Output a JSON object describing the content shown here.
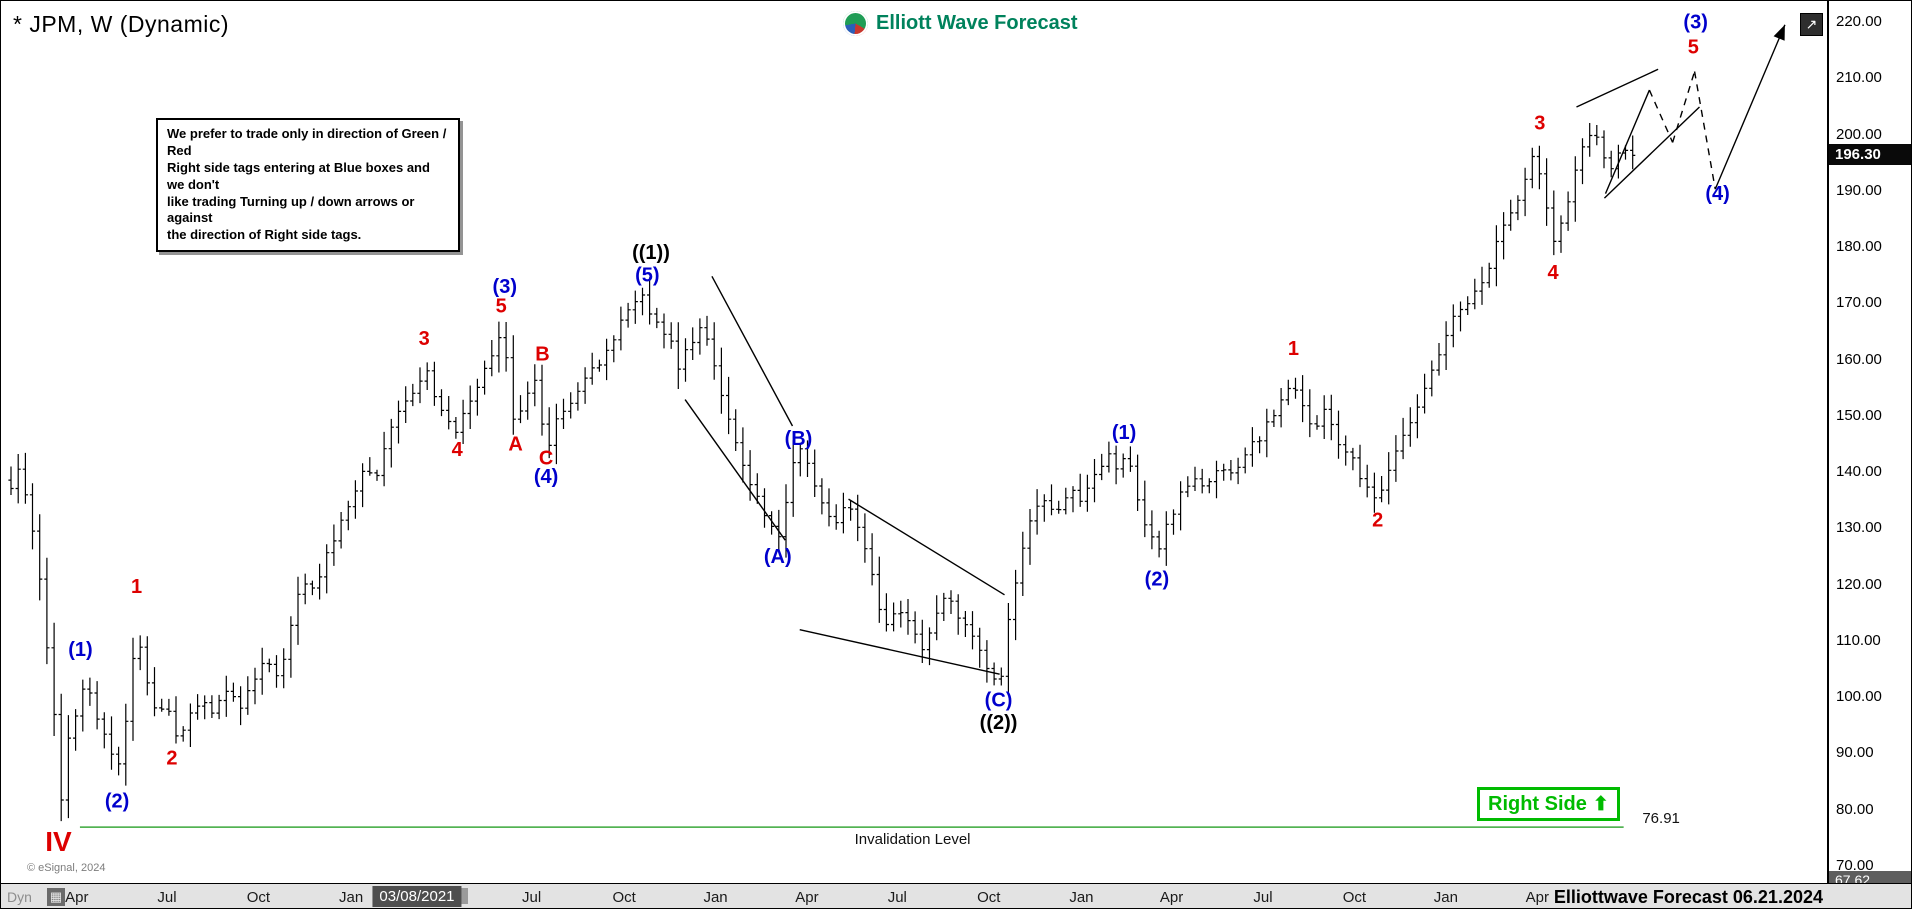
{
  "header": {
    "symbol_title": "* JPM, W (Dynamic)",
    "brand": "Elliott Wave Forecast"
  },
  "annotations": {
    "note_lines": [
      "We prefer to trade only in direction of Green / Red",
      "Right side tags entering at Blue boxes and we don't",
      "like trading Turning up / down arrows or against",
      "the direction of Right side tags."
    ],
    "right_side_label": "Right Side",
    "invalidation_label": "Invalidation Level",
    "invalidation_value": "76.91",
    "footer_text": "Elliottwave Forecast 06.21.2024",
    "copyright": "© eSignal, 2024",
    "mode_label": "Dyn"
  },
  "icons": {
    "up_arrow": "⬆",
    "scroll_arrow": "↗",
    "mode_icon": "▦"
  },
  "colors": {
    "red": "#dd0000",
    "blue": "#0000cc",
    "black": "#000000",
    "green_line": "#3aa83a",
    "badge_green": "#00bb00",
    "brand_green": "#00825c"
  },
  "price_axis": {
    "min": 70,
    "max": 220,
    "step": 10,
    "current_price": "196.30",
    "current_price_value": 196.3,
    "bottom_value": "67.62",
    "bottom_value_num": 67.62
  },
  "time_axis": {
    "ticks": [
      {
        "label": "Apr",
        "t": 0.0363
      },
      {
        "label": "Jul",
        "t": 0.086
      },
      {
        "label": "Oct",
        "t": 0.1364
      },
      {
        "label": "Jan",
        "t": 0.1875
      },
      {
        "label": "03/08/2021",
        "t": 0.2238,
        "highlight": true
      },
      {
        "label": "Jul",
        "t": 0.287
      },
      {
        "label": "Oct",
        "t": 0.338
      },
      {
        "label": "Jan",
        "t": 0.3884
      },
      {
        "label": "Apr",
        "t": 0.4388
      },
      {
        "label": "Jul",
        "t": 0.4886
      },
      {
        "label": "Oct",
        "t": 0.539
      },
      {
        "label": "Jan",
        "t": 0.5901
      },
      {
        "label": "Apr",
        "t": 0.6398
      },
      {
        "label": "Jul",
        "t": 0.6902
      },
      {
        "label": "Oct",
        "t": 0.7406
      },
      {
        "label": "Jan",
        "t": 0.791
      },
      {
        "label": "Apr",
        "t": 0.8414
      }
    ]
  },
  "chart_data": {
    "type": "ohlc",
    "symbol": "JPM",
    "timeframe": "weekly",
    "ylim": [
      70,
      220
    ],
    "current_price": 196.3,
    "bar_count": 227,
    "bars_end_t": 0.894,
    "price_path": [
      [
        0.0,
        137
      ],
      [
        0.004,
        140
      ],
      [
        0.009,
        136
      ],
      [
        0.015,
        124
      ],
      [
        0.02,
        108
      ],
      [
        0.024,
        96
      ],
      [
        0.028,
        80
      ],
      [
        0.032,
        93
      ],
      [
        0.036,
        97
      ],
      [
        0.042,
        104
      ],
      [
        0.047,
        96
      ],
      [
        0.054,
        91
      ],
      [
        0.058,
        86
      ],
      [
        0.064,
        98
      ],
      [
        0.069,
        113
      ],
      [
        0.075,
        102
      ],
      [
        0.081,
        97
      ],
      [
        0.086,
        99
      ],
      [
        0.092,
        92
      ],
      [
        0.099,
        97
      ],
      [
        0.105,
        100
      ],
      [
        0.112,
        97
      ],
      [
        0.119,
        102
      ],
      [
        0.126,
        98
      ],
      [
        0.134,
        103
      ],
      [
        0.14,
        106
      ],
      [
        0.148,
        104
      ],
      [
        0.155,
        114
      ],
      [
        0.161,
        121
      ],
      [
        0.168,
        119
      ],
      [
        0.175,
        126
      ],
      [
        0.181,
        131
      ],
      [
        0.188,
        136
      ],
      [
        0.195,
        141
      ],
      [
        0.202,
        139
      ],
      [
        0.208,
        146
      ],
      [
        0.215,
        151
      ],
      [
        0.222,
        154
      ],
      [
        0.228,
        159
      ],
      [
        0.234,
        152
      ],
      [
        0.24,
        150
      ],
      [
        0.246,
        147
      ],
      [
        0.253,
        153
      ],
      [
        0.259,
        156
      ],
      [
        0.266,
        162
      ],
      [
        0.271,
        166
      ],
      [
        0.277,
        149
      ],
      [
        0.284,
        153
      ],
      [
        0.29,
        157
      ],
      [
        0.295,
        143
      ],
      [
        0.301,
        149
      ],
      [
        0.308,
        152
      ],
      [
        0.314,
        156
      ],
      [
        0.321,
        158
      ],
      [
        0.328,
        161
      ],
      [
        0.335,
        166
      ],
      [
        0.341,
        170
      ],
      [
        0.348,
        171
      ],
      [
        0.355,
        167
      ],
      [
        0.362,
        164
      ],
      [
        0.368,
        159
      ],
      [
        0.375,
        163
      ],
      [
        0.382,
        166
      ],
      [
        0.388,
        158
      ],
      [
        0.395,
        150
      ],
      [
        0.402,
        143
      ],
      [
        0.409,
        137
      ],
      [
        0.415,
        132
      ],
      [
        0.423,
        128
      ],
      [
        0.429,
        137
      ],
      [
        0.434,
        146
      ],
      [
        0.441,
        139
      ],
      [
        0.448,
        133
      ],
      [
        0.454,
        130
      ],
      [
        0.461,
        134
      ],
      [
        0.468,
        130
      ],
      [
        0.473,
        124
      ],
      [
        0.478,
        117
      ],
      [
        0.484,
        112
      ],
      [
        0.489,
        116
      ],
      [
        0.496,
        112
      ],
      [
        0.503,
        108
      ],
      [
        0.509,
        114
      ],
      [
        0.516,
        118
      ],
      [
        0.523,
        114
      ],
      [
        0.53,
        111
      ],
      [
        0.536,
        107
      ],
      [
        0.542,
        103
      ],
      [
        0.546,
        104
      ],
      [
        0.551,
        116
      ],
      [
        0.557,
        125
      ],
      [
        0.563,
        132
      ],
      [
        0.57,
        135
      ],
      [
        0.577,
        132
      ],
      [
        0.583,
        137
      ],
      [
        0.59,
        134
      ],
      [
        0.597,
        139
      ],
      [
        0.604,
        143
      ],
      [
        0.61,
        140
      ],
      [
        0.616,
        143
      ],
      [
        0.621,
        136
      ],
      [
        0.626,
        130
      ],
      [
        0.632,
        126
      ],
      [
        0.638,
        131
      ],
      [
        0.645,
        137
      ],
      [
        0.652,
        139
      ],
      [
        0.659,
        137
      ],
      [
        0.665,
        141
      ],
      [
        0.672,
        139
      ],
      [
        0.679,
        143
      ],
      [
        0.686,
        145
      ],
      [
        0.692,
        148
      ],
      [
        0.699,
        152
      ],
      [
        0.706,
        157
      ],
      [
        0.711,
        152
      ],
      [
        0.718,
        148
      ],
      [
        0.724,
        151
      ],
      [
        0.731,
        146
      ],
      [
        0.738,
        143
      ],
      [
        0.745,
        139
      ],
      [
        0.753,
        135
      ],
      [
        0.761,
        142
      ],
      [
        0.768,
        146
      ],
      [
        0.774,
        151
      ],
      [
        0.781,
        157
      ],
      [
        0.788,
        162
      ],
      [
        0.794,
        167
      ],
      [
        0.801,
        169
      ],
      [
        0.808,
        172
      ],
      [
        0.815,
        177
      ],
      [
        0.821,
        182
      ],
      [
        0.828,
        187
      ],
      [
        0.835,
        192
      ],
      [
        0.84,
        198
      ],
      [
        0.845,
        190
      ],
      [
        0.85,
        181
      ],
      [
        0.856,
        186
      ],
      [
        0.862,
        193
      ],
      [
        0.869,
        201
      ],
      [
        0.876,
        198
      ],
      [
        0.881,
        194
      ],
      [
        0.887,
        197
      ],
      [
        0.894,
        196.3
      ]
    ],
    "wave_labels": [
      {
        "text": "IV",
        "t": 0.0262,
        "price": 74.0,
        "color": "red",
        "size": 28
      },
      {
        "text": "1",
        "t": 0.0692,
        "price": 119.5,
        "color": "red"
      },
      {
        "text": "2",
        "t": 0.0887,
        "price": 89.0,
        "color": "red"
      },
      {
        "text": "3",
        "t": 0.2278,
        "price": 163.5,
        "color": "red"
      },
      {
        "text": "4",
        "t": 0.246,
        "price": 143.8,
        "color": "red"
      },
      {
        "text": "5",
        "t": 0.2702,
        "price": 169.3,
        "color": "red"
      },
      {
        "text": "A",
        "t": 0.2782,
        "price": 144.8,
        "color": "red"
      },
      {
        "text": "B",
        "t": 0.293,
        "price": 160.8,
        "color": "red"
      },
      {
        "text": "C",
        "t": 0.295,
        "price": 142.3,
        "color": "red"
      },
      {
        "text": "1",
        "t": 0.707,
        "price": 161.8,
        "color": "red"
      },
      {
        "text": "2",
        "t": 0.7534,
        "price": 131.3,
        "color": "red"
      },
      {
        "text": "3",
        "t": 0.8428,
        "price": 201.8,
        "color": "red"
      },
      {
        "text": "4",
        "t": 0.8501,
        "price": 175.3,
        "color": "red"
      },
      {
        "text": "5",
        "t": 0.9274,
        "price": 215.3,
        "color": "red"
      },
      {
        "text": "(1)",
        "t": 0.0383,
        "price": 108.3,
        "color": "blue"
      },
      {
        "text": "(2)",
        "t": 0.0585,
        "price": 81.3,
        "color": "blue"
      },
      {
        "text": "(3)",
        "t": 0.2722,
        "price": 172.8,
        "color": "blue"
      },
      {
        "text": "(4)",
        "t": 0.295,
        "price": 139.0,
        "color": "blue"
      },
      {
        "text": "(5)",
        "t": 0.3508,
        "price": 174.8,
        "color": "blue"
      },
      {
        "text": "(A)",
        "t": 0.4227,
        "price": 124.8,
        "color": "blue"
      },
      {
        "text": "(B)",
        "t": 0.4341,
        "price": 145.8,
        "color": "blue"
      },
      {
        "text": "(C)",
        "t": 0.5444,
        "price": 99.3,
        "color": "blue"
      },
      {
        "text": "(1)",
        "t": 0.6136,
        "price": 146.8,
        "color": "blue"
      },
      {
        "text": "(2)",
        "t": 0.6317,
        "price": 120.8,
        "color": "blue"
      },
      {
        "text": "(3)",
        "t": 0.9287,
        "price": 219.8,
        "color": "blue"
      },
      {
        "text": "(4)",
        "t": 0.9408,
        "price": 189.3,
        "color": "blue"
      },
      {
        "text": "((1))",
        "t": 0.3528,
        "price": 178.8,
        "color": "black"
      },
      {
        "text": "((2))",
        "t": 0.5444,
        "price": 95.3,
        "color": "black"
      }
    ],
    "trend_lines": [
      {
        "pts": [
          [
            0.3864,
            174.8
          ],
          [
            0.4308,
            148.2
          ]
        ]
      },
      {
        "pts": [
          [
            0.3716,
            152.9
          ],
          [
            0.4268,
            127.9
          ]
        ]
      },
      {
        "pts": [
          [
            0.4617,
            135.2
          ],
          [
            0.5477,
            118.2
          ]
        ]
      },
      {
        "pts": [
          [
            0.4348,
            112.0
          ],
          [
            0.545,
            104.1
          ]
        ]
      },
      {
        "pts": [
          [
            0.863,
            204.9
          ],
          [
            0.908,
            211.6
          ]
        ]
      },
      {
        "pts": [
          [
            0.8784,
            188.7
          ],
          [
            0.9308,
            204.9
          ]
        ]
      },
      {
        "pts": [
          [
            0.879,
            189.5
          ],
          [
            0.9032,
            207.9
          ]
        ]
      },
      {
        "pts": [
          [
            0.9032,
            207.9
          ],
          [
            0.916,
            198.6
          ]
        ],
        "dash": true
      },
      {
        "pts": [
          [
            0.916,
            198.6
          ],
          [
            0.9281,
            211.2
          ]
        ],
        "dash": true
      },
      {
        "pts": [
          [
            0.9281,
            211.2
          ],
          [
            0.9395,
            190.3
          ]
        ],
        "dash": true
      },
      {
        "pts": [
          [
            0.9395,
            190.3
          ],
          [
            0.9779,
            219.5
          ]
        ],
        "arrow": true
      }
    ],
    "invalidation": {
      "price": 76.91,
      "t1": 0.038,
      "t2": 0.889,
      "label_t": 0.497,
      "value_t": 0.896
    }
  }
}
